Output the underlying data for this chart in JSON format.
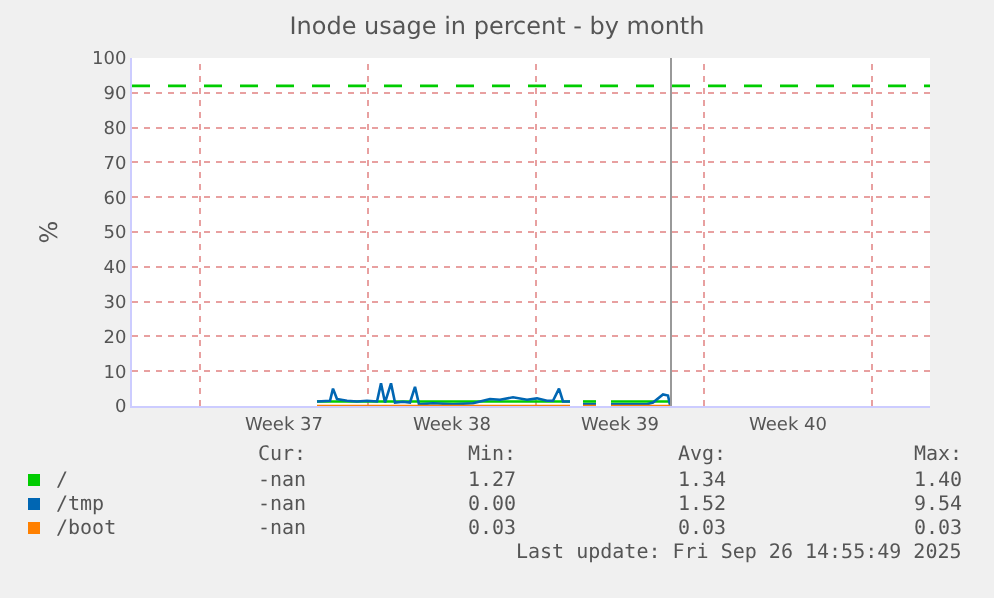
{
  "chart_data": {
    "type": "line",
    "title": "Inode usage in percent - by month",
    "ylabel": "%",
    "x": [
      "2025-09-11T21:00",
      "2025-09-12T10:00",
      "2025-09-12T13:00",
      "2025-09-12T17:00",
      "2025-09-13T03:00",
      "2025-09-13T13:00",
      "2025-09-13T23:00",
      "2025-09-14T09:00",
      "2025-09-14T13:00",
      "2025-09-14T17:00",
      "2025-09-14T23:00",
      "2025-09-15T03:00",
      "2025-09-15T11:00",
      "2025-09-15T18:00",
      "2025-09-15T23:00",
      "2025-09-16T03:00",
      "2025-09-16T17:00",
      "2025-09-17T13:00",
      "2025-09-18T09:00",
      "2025-09-19T02:00",
      "2025-09-19T12:00",
      "2025-09-20T01:00",
      "2025-09-20T15:00",
      "2025-09-21T01:00",
      "2025-09-21T11:00",
      "2025-09-21T17:00",
      "2025-09-21T23:00",
      "2025-09-22T03:00",
      "2025-09-22T10:00",
      "2025-09-22T16:00",
      "2025-09-22T23:00",
      "2025-09-23T12:00",
      "2025-09-23T20:00",
      "2025-09-24T03:00",
      "2025-09-25T15:00",
      "2025-09-25T21:00",
      "2025-09-26T07:00",
      "2025-09-26T12:00",
      "2025-09-26T14:00"
    ],
    "series": [
      {
        "name": "/",
        "color": "#00cc00",
        "values": [
          1.3,
          1.3,
          1.3,
          1.3,
          1.3,
          1.3,
          1.3,
          1.3,
          1.3,
          1.3,
          1.3,
          1.3,
          1.3,
          1.3,
          1.3,
          1.3,
          1.3,
          1.3,
          1.3,
          1.3,
          1.3,
          1.3,
          1.3,
          1.3,
          1.3,
          1.3,
          1.3,
          1.3,
          1.3,
          null,
          1.3,
          1.3,
          null,
          1.3,
          1.3,
          1.3,
          1.3,
          1.3,
          1.3
        ]
      },
      {
        "name": "/tmp",
        "color": "#0066b3",
        "values": [
          1.3,
          1.5,
          5,
          2,
          1.5,
          1.3,
          1.5,
          1.3,
          6.5,
          1.0,
          6.5,
          1.0,
          1.2,
          1.0,
          5.5,
          0.5,
          0.8,
          0.5,
          0.8,
          2.0,
          1.8,
          2.5,
          1.8,
          2.2,
          1.5,
          1.5,
          5,
          1.3,
          1.3,
          null,
          0.5,
          0.5,
          null,
          0.5,
          0.5,
          1.0,
          3.3,
          3.0,
          0.3
        ]
      },
      {
        "name": "/boot",
        "color": "#ff8000",
        "values": [
          0,
          0,
          0,
          0,
          0,
          0,
          0,
          0,
          0,
          0,
          0,
          0,
          0,
          0,
          0,
          0,
          0,
          0,
          0,
          0,
          0,
          0,
          0,
          0,
          0,
          0,
          0,
          0,
          0,
          null,
          0,
          0,
          null,
          0,
          0,
          0,
          0,
          0,
          0
        ]
      }
    ],
    "xlim": [
      "2025-09-04T04:00",
      "2025-10-07T10:00"
    ],
    "xticks": [
      {
        "value": "2025-09-07",
        "label": null
      },
      {
        "value": "2025-09-10T12:00",
        "label": "Week 37"
      },
      {
        "value": "2025-09-14",
        "label": null
      },
      {
        "value": "2025-09-17T12:00",
        "label": "Week 38"
      },
      {
        "value": "2025-09-21",
        "label": null
      },
      {
        "value": "2025-09-24T12:00",
        "label": "Week 39"
      },
      {
        "value": "2025-09-28",
        "label": null
      },
      {
        "value": "2025-10-01T12:00",
        "label": "Week 40"
      },
      {
        "value": "2025-10-05",
        "label": null
      }
    ],
    "ylim": [
      0,
      100
    ],
    "yticks": [
      0,
      10,
      20,
      30,
      40,
      50,
      60,
      70,
      80,
      90,
      100
    ],
    "grid": true,
    "legend": "bottom",
    "ref_lines": [
      {
        "axis": "y",
        "value": 92,
        "color": "#00cc00",
        "line_style": "dashed"
      },
      {
        "axis": "x",
        "value": "2025-09-26T15:00",
        "color": "#999999",
        "line_style": "solid"
      }
    ],
    "annotations": [
      "Cur:",
      "Min:",
      "Avg:",
      "Max:",
      "-nan",
      "1.27",
      "1.34",
      "1.40",
      "-nan",
      "0.00",
      "1.52",
      "9.54",
      "-nan",
      "0.03",
      "0.03",
      "0.03",
      "Last update: Fri Sep 26 14:55:49 2025"
    ]
  }
}
